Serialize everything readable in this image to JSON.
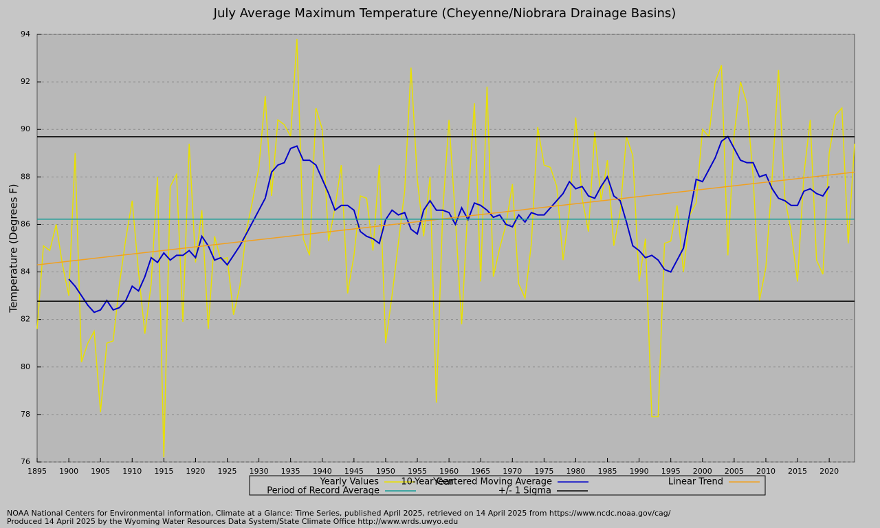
{
  "chart_data": {
    "type": "line",
    "title": "July Average Maximum Temperature (Cheyenne/Niobrara Drainage Basins)",
    "x_label": "Year",
    "y_label": "Temperature (Degrees F)",
    "x": [
      1895,
      1896,
      1897,
      1898,
      1899,
      1900,
      1901,
      1902,
      1903,
      1904,
      1905,
      1906,
      1907,
      1908,
      1909,
      1910,
      1911,
      1912,
      1913,
      1914,
      1915,
      1916,
      1917,
      1918,
      1919,
      1920,
      1921,
      1922,
      1923,
      1924,
      1925,
      1926,
      1927,
      1928,
      1929,
      1930,
      1931,
      1932,
      1933,
      1934,
      1935,
      1936,
      1937,
      1938,
      1939,
      1940,
      1941,
      1942,
      1943,
      1944,
      1945,
      1946,
      1947,
      1948,
      1949,
      1950,
      1951,
      1952,
      1953,
      1954,
      1955,
      1956,
      1957,
      1958,
      1959,
      1960,
      1961,
      1962,
      1963,
      1964,
      1965,
      1966,
      1967,
      1968,
      1969,
      1970,
      1971,
      1972,
      1973,
      1974,
      1975,
      1976,
      1977,
      1978,
      1979,
      1980,
      1981,
      1982,
      1983,
      1984,
      1985,
      1986,
      1987,
      1988,
      1989,
      1990,
      1991,
      1992,
      1993,
      1994,
      1995,
      1996,
      1997,
      1998,
      1999,
      2000,
      2001,
      2002,
      2003,
      2004,
      2005,
      2006,
      2007,
      2008,
      2009,
      2010,
      2011,
      2012,
      2013,
      2014,
      2015,
      2016,
      2017,
      2018,
      2019,
      2020,
      2021,
      2022,
      2023,
      2024
    ],
    "series": [
      {
        "name": "Yearly Values",
        "color": "#e8e000",
        "values": [
          81.6,
          85.1,
          84.9,
          86.0,
          84.3,
          83.0,
          89.0,
          80.2,
          81.0,
          81.5,
          78.1,
          81.0,
          81.1,
          83.5,
          85.4,
          87.0,
          84.0,
          81.4,
          83.5,
          88.0,
          76.2,
          87.6,
          88.1,
          81.9,
          89.4,
          84.4,
          86.6,
          81.6,
          85.5,
          84.5,
          84.6,
          82.2,
          83.4,
          85.7,
          87.0,
          88.4,
          91.4,
          87.2,
          90.4,
          90.2,
          89.7,
          93.8,
          85.4,
          84.7,
          90.9,
          90.0,
          85.3,
          86.7,
          88.5,
          83.1,
          84.7,
          87.2,
          87.1,
          84.9,
          88.5,
          81.0,
          83.0,
          85.2,
          87.4,
          92.6,
          87.9,
          85.5,
          88.0,
          78.5,
          86.5,
          90.4,
          86.3,
          81.8,
          86.9,
          91.1,
          83.6,
          91.8,
          83.8,
          85.0,
          86.0,
          87.7,
          83.5,
          82.9,
          85.2,
          90.1,
          88.5,
          88.4,
          87.6,
          84.5,
          86.6,
          90.5,
          87.1,
          85.7,
          89.9,
          87.0,
          88.7,
          85.1,
          86.5,
          89.7,
          88.9,
          83.6,
          85.4,
          77.9,
          77.9,
          85.2,
          85.3,
          86.8,
          84.0,
          86.4,
          86.9,
          90.0,
          89.7,
          92.0,
          92.7,
          84.7,
          89.8,
          92.0,
          91.1,
          88.0,
          82.8,
          84.2,
          88.0,
          92.5,
          87.1,
          85.7,
          83.6,
          88.1,
          90.4,
          84.5,
          83.9,
          89.0,
          90.6,
          90.9,
          85.2,
          89.4
        ]
      },
      {
        "name": "10-Year Centered Moving Average",
        "color": "#0000c8",
        "values": [
          null,
          null,
          null,
          null,
          null,
          83.7,
          83.4,
          83.0,
          82.6,
          82.3,
          82.4,
          82.8,
          82.4,
          82.5,
          82.8,
          83.4,
          83.2,
          83.8,
          84.6,
          84.4,
          84.8,
          84.5,
          84.7,
          84.7,
          84.9,
          84.6,
          85.5,
          85.1,
          84.5,
          84.6,
          84.3,
          84.7,
          85.1,
          85.6,
          86.1,
          86.6,
          87.1,
          88.2,
          88.5,
          88.6,
          89.2,
          89.3,
          88.7,
          88.7,
          88.5,
          87.9,
          87.3,
          86.6,
          86.8,
          86.8,
          86.6,
          85.7,
          85.5,
          85.4,
          85.2,
          86.2,
          86.6,
          86.4,
          86.5,
          85.8,
          85.6,
          86.6,
          87.0,
          86.6,
          86.6,
          86.5,
          86.0,
          86.7,
          86.2,
          86.9,
          86.8,
          86.6,
          86.3,
          86.4,
          86.0,
          85.9,
          86.4,
          86.1,
          86.5,
          86.4,
          86.4,
          86.7,
          87.0,
          87.3,
          87.8,
          87.5,
          87.6,
          87.2,
          87.1,
          87.6,
          88.0,
          87.2,
          87.0,
          86.1,
          85.1,
          84.9,
          84.6,
          84.7,
          84.5,
          84.1,
          84.0,
          84.5,
          85.0,
          86.5,
          87.9,
          87.8,
          88.3,
          88.8,
          89.5,
          89.7,
          89.2,
          88.7,
          88.6,
          88.6,
          88.0,
          88.1,
          87.5,
          87.1,
          87.0,
          86.8,
          86.8,
          87.4,
          87.5,
          87.3,
          87.2,
          87.6,
          null,
          null,
          null,
          null
        ]
      },
      {
        "name": "Linear Trend",
        "color": "#f0a020",
        "x": [
          1895,
          2024
        ],
        "values": [
          84.3,
          88.2
        ]
      },
      {
        "name": "Period of Record Average",
        "color": "#139c96",
        "x": [
          1895,
          2024
        ],
        "values": [
          86.22,
          86.22
        ]
      },
      {
        "name": "+/- 1 Sigma",
        "color": "#000000",
        "x": [
          1895,
          2024
        ],
        "values": [
          89.69,
          89.69
        ],
        "values_low": [
          82.77,
          82.77
        ]
      }
    ],
    "xlim": [
      1895,
      2024
    ],
    "ylim": [
      76,
      94
    ],
    "xticks": [
      1895,
      1900,
      1905,
      1910,
      1915,
      1920,
      1925,
      1930,
      1935,
      1940,
      1945,
      1950,
      1955,
      1960,
      1965,
      1970,
      1975,
      1980,
      1985,
      1990,
      1995,
      2000,
      2005,
      2010,
      2015,
      2020
    ],
    "yticks": [
      76,
      78,
      80,
      82,
      84,
      86,
      88,
      90,
      92,
      94
    ],
    "grid": true,
    "footer": [
      "NOAA National Centers for Environmental information, Climate at a Glance: Time Series, published April 2025, retrieved on 14 April 2025 from https://www.ncdc.noaa.gov/cag/",
      "Produced 14 April 2025 by the Wyoming Water Resources Data System/State Climate Office http://www.wrds.uwyo.edu"
    ]
  }
}
